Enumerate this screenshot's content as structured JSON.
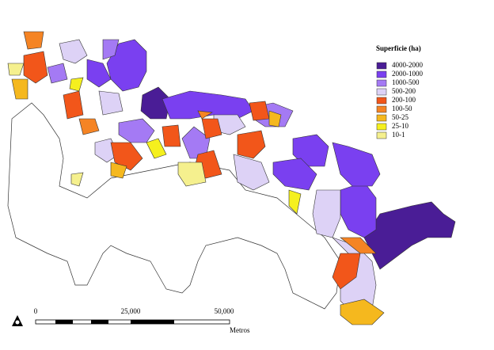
{
  "legend": {
    "title": "Superficie (ha)",
    "classes": [
      {
        "label": "4000-2000",
        "color": "#4a1d96"
      },
      {
        "label": "2000-1000",
        "color": "#7a40f0"
      },
      {
        "label": "1000-500",
        "color": "#a47af4"
      },
      {
        "label": "500-200",
        "color": "#ddd2f6"
      },
      {
        "label": "200-100",
        "color": "#f2561a"
      },
      {
        "label": "100-50",
        "color": "#f58424"
      },
      {
        "label": "50-25",
        "color": "#f5b81e"
      },
      {
        "label": "25-10",
        "color": "#f5f01e"
      },
      {
        "label": "10-1",
        "color": "#f5f08e"
      }
    ]
  },
  "scale_bar": {
    "labels": [
      "0",
      "25,000",
      "50,000"
    ],
    "unit": "Metros"
  }
}
